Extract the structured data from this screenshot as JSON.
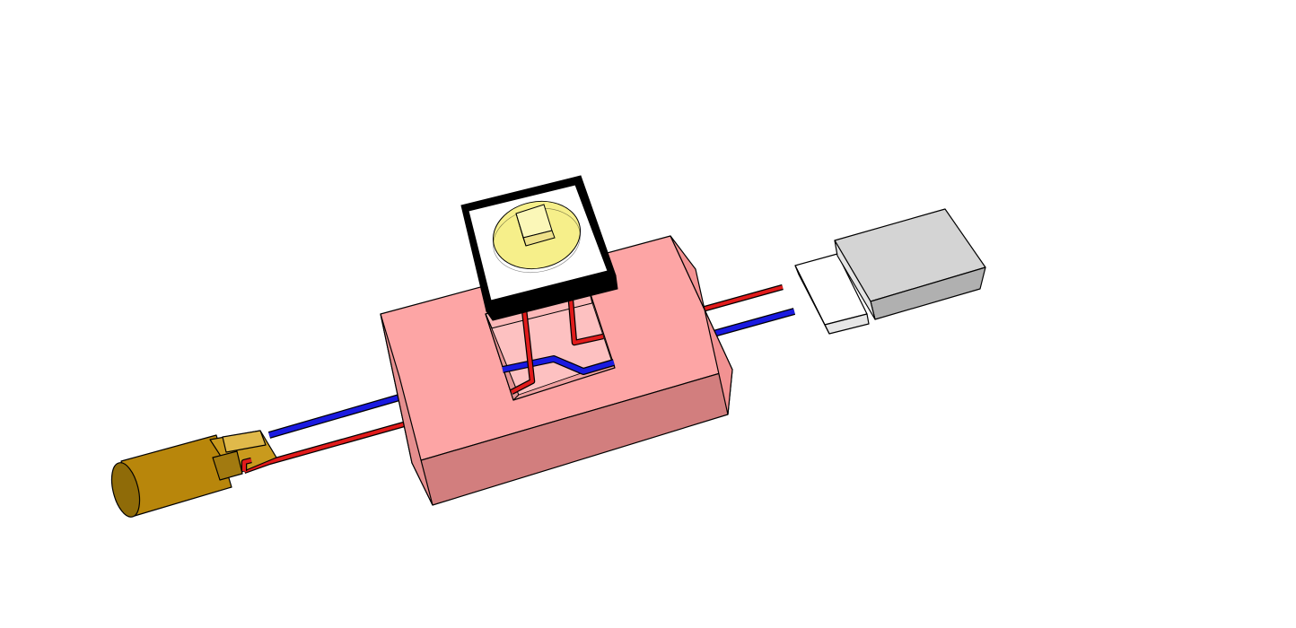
{
  "diagram": {
    "components": [
      {
        "id": "pink-enclosure",
        "type": "housing"
      },
      {
        "id": "push-button-switch",
        "type": "tactile switch"
      },
      {
        "id": "dc-barrel-plug",
        "type": "connector"
      },
      {
        "id": "usb-plug",
        "type": "connector"
      }
    ],
    "wires": [
      {
        "color": "red",
        "role": "switched line"
      },
      {
        "color": "blue",
        "role": "pass-through line"
      }
    ]
  },
  "colors": {
    "enclosure_top": "#fda5a5",
    "enclosure_front": "#d27e7e",
    "enclosure_side": "#f29292",
    "wire_red": "#e11b1b",
    "wire_blue": "#1a1ae0",
    "switch_cap": "#f6ef8a",
    "switch_body": "#000000",
    "barrel_plug": "#b8860b",
    "usb_plug": "#d4d4d4"
  }
}
